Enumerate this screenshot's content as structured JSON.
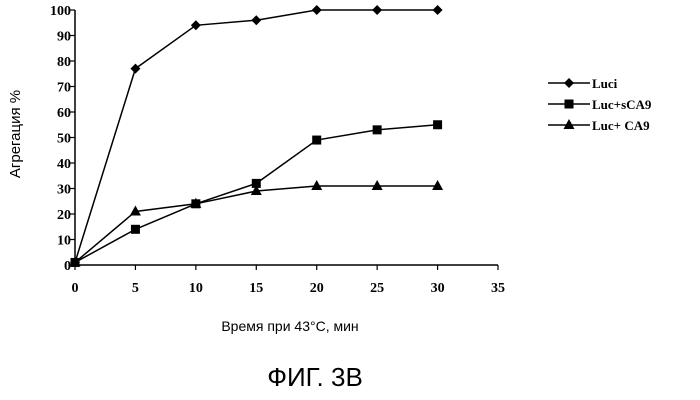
{
  "chart_data": {
    "type": "line",
    "title": "",
    "xlabel": "Время при 43°C, мин",
    "ylabel": "Агрегация %",
    "xlim": [
      0,
      35
    ],
    "ylim": [
      0,
      100
    ],
    "x_ticks": [
      0,
      5,
      10,
      15,
      20,
      25,
      30,
      35
    ],
    "y_ticks": [
      0,
      10,
      20,
      30,
      40,
      50,
      60,
      70,
      80,
      90,
      100
    ],
    "grid": false,
    "legend_position": "right",
    "series": [
      {
        "name": "Luci",
        "marker": "diamond",
        "x": [
          0,
          5,
          10,
          15,
          20,
          25,
          30
        ],
        "values": [
          1,
          77,
          94,
          96,
          100,
          100,
          100
        ]
      },
      {
        "name": "Luc+sCA9",
        "marker": "square",
        "x": [
          0,
          5,
          10,
          15,
          20,
          25,
          30
        ],
        "values": [
          1,
          14,
          24,
          32,
          49,
          53,
          55
        ]
      },
      {
        "name": "Luc+ CA9",
        "marker": "triangle",
        "x": [
          0,
          5,
          10,
          15,
          20,
          25,
          30
        ],
        "values": [
          1,
          21,
          24,
          29,
          31,
          31,
          31
        ]
      }
    ]
  },
  "caption": "ФИГ. 3В"
}
